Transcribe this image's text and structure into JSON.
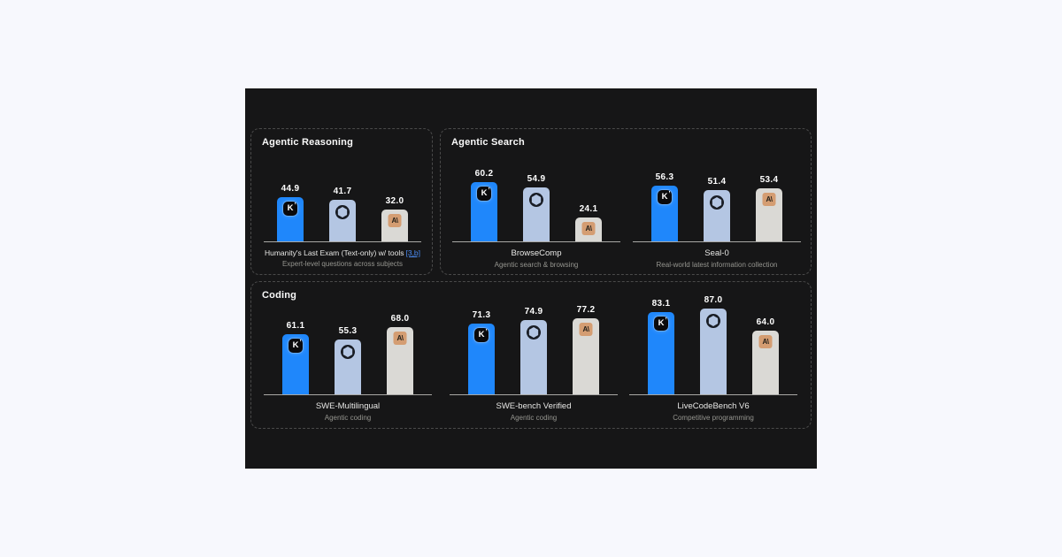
{
  "page": {
    "background": "#f7f8fd",
    "canvas_background": "#161617",
    "panel_border_color": "#4a4a4a",
    "axis_color": "#a9a8a5",
    "value_label_color": "#ffffff",
    "link_color": "#4c8df6"
  },
  "models": [
    {
      "name": "Kimi",
      "icon": "kimi-k-icon",
      "glyph": "K",
      "bar_color": "#1f87fb",
      "icon_bg": "#0a0a0c",
      "icon_color": "#ffffff"
    },
    {
      "name": "OpenAI",
      "icon": "openai-icon",
      "glyph": "",
      "bar_color": "#b4c6e3",
      "icon_bg": "",
      "icon_color": "#191d25"
    },
    {
      "name": "Anthropic",
      "icon": "anthropic-icon",
      "glyph": "A\\",
      "bar_color": "#dad9d5",
      "icon_bg": "#d49d72",
      "icon_color": "#221f19"
    }
  ],
  "panels": [
    {
      "title": "Agentic Reasoning",
      "chart_indexes": [
        0
      ]
    },
    {
      "title": "Agentic Search",
      "chart_indexes": [
        1,
        2
      ]
    },
    {
      "title": "Coding",
      "chart_indexes": [
        3,
        4,
        5
      ]
    }
  ],
  "chart_data": [
    {
      "type": "bar",
      "panel": "Agentic Reasoning",
      "title": "Humanity's Last Exam (Text-only) w/ tools",
      "title_link": "[3,b]",
      "subtitle": "Expert-level questions across subjects",
      "ylim": [
        0,
        100
      ],
      "grid": false,
      "value_labels": true,
      "series": [
        {
          "name": "Kimi",
          "value": 44.9,
          "label": "44.9"
        },
        {
          "name": "OpenAI",
          "value": 41.7,
          "label": "41.7"
        },
        {
          "name": "Anthropic",
          "value": 32.0,
          "label": "32.0"
        }
      ]
    },
    {
      "type": "bar",
      "panel": "Agentic Search",
      "title": "BrowseComp",
      "subtitle": "Agentic search & browsing",
      "ylim": [
        0,
        100
      ],
      "grid": false,
      "value_labels": true,
      "series": [
        {
          "name": "Kimi",
          "value": 60.2,
          "label": "60.2"
        },
        {
          "name": "OpenAI",
          "value": 54.9,
          "label": "54.9"
        },
        {
          "name": "Anthropic",
          "value": 24.1,
          "label": "24.1"
        }
      ]
    },
    {
      "type": "bar",
      "panel": "Agentic Search",
      "title": "Seal-0",
      "subtitle": "Real-world latest information collection",
      "ylim": [
        0,
        100
      ],
      "grid": false,
      "value_labels": true,
      "series": [
        {
          "name": "Kimi",
          "value": 56.3,
          "label": "56.3"
        },
        {
          "name": "OpenAI",
          "value": 51.4,
          "label": "51.4"
        },
        {
          "name": "Anthropic",
          "value": 53.4,
          "label": "53.4"
        }
      ]
    },
    {
      "type": "bar",
      "panel": "Coding",
      "title": "SWE-Multilingual",
      "subtitle": "Agentic coding",
      "ylim": [
        0,
        100
      ],
      "grid": false,
      "value_labels": true,
      "series": [
        {
          "name": "Kimi",
          "value": 61.1,
          "label": "61.1"
        },
        {
          "name": "OpenAI",
          "value": 55.3,
          "label": "55.3"
        },
        {
          "name": "Anthropic",
          "value": 68.0,
          "label": "68.0"
        }
      ]
    },
    {
      "type": "bar",
      "panel": "Coding",
      "title": "SWE-bench Verified",
      "subtitle": "Agentic coding",
      "ylim": [
        0,
        100
      ],
      "grid": false,
      "value_labels": true,
      "series": [
        {
          "name": "Kimi",
          "value": 71.3,
          "label": "71.3"
        },
        {
          "name": "OpenAI",
          "value": 74.9,
          "label": "74.9"
        },
        {
          "name": "Anthropic",
          "value": 77.2,
          "label": "77.2"
        }
      ]
    },
    {
      "type": "bar",
      "panel": "Coding",
      "title": "LiveCodeBench V6",
      "subtitle": "Competitive programming",
      "ylim": [
        0,
        100
      ],
      "grid": false,
      "value_labels": true,
      "series": [
        {
          "name": "Kimi",
          "value": 83.1,
          "label": "83.1"
        },
        {
          "name": "OpenAI",
          "value": 87.0,
          "label": "87.0"
        },
        {
          "name": "Anthropic",
          "value": 64.0,
          "label": "64.0"
        }
      ]
    }
  ]
}
